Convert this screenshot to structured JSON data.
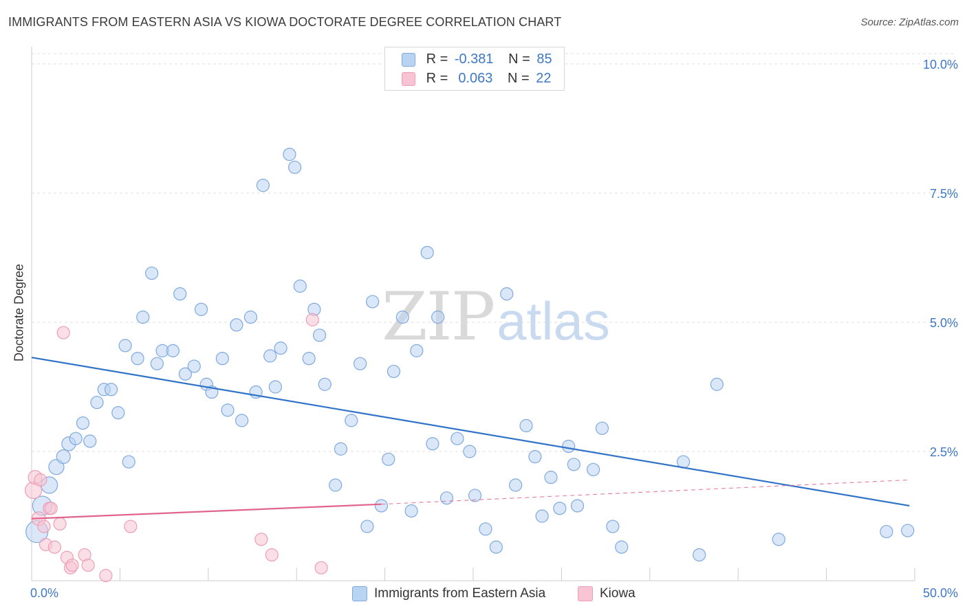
{
  "header": {
    "title": "IMMIGRANTS FROM EASTERN ASIA VS KIOWA DOCTORATE DEGREE CORRELATION CHART",
    "source": "Source: ZipAtlas.com"
  },
  "watermark": {
    "zip": "ZIP",
    "atlas": "atlas"
  },
  "legend": {
    "rows": [
      {
        "r_label": "R =",
        "r_value": "-0.381",
        "n_label": "N =",
        "n_value": "85"
      },
      {
        "r_label": "R =",
        "r_value": " 0.063",
        "n_label": "N =",
        "n_value": "22"
      }
    ]
  },
  "chart_data": {
    "type": "scatter",
    "title": "IMMIGRANTS FROM EASTERN ASIA VS KIOWA DOCTORATE DEGREE CORRELATION CHART",
    "xlabel": "",
    "ylabel": "Doctorate Degree",
    "xlim": [
      0,
      50
    ],
    "ylim": [
      0,
      10.2
    ],
    "x_tick_labels": [
      "0.0%",
      "50.0%"
    ],
    "y_ticks": [
      {
        "value": 2.5,
        "label": "2.5%"
      },
      {
        "value": 5.0,
        "label": "5.0%"
      },
      {
        "value": 7.5,
        "label": "7.5%"
      },
      {
        "value": 10.0,
        "label": "10.0%"
      }
    ],
    "grid": true,
    "legend_position": "top-center",
    "colors": {
      "blue_fill": "#b9d3f3",
      "blue_stroke": "#7fa9de",
      "blue_line": "#2f72c8",
      "pink_fill": "#f8c4d4",
      "pink_stroke": "#ee9db6",
      "pink_line": "#e0648e",
      "axis_text": "#3d77c6",
      "grid": "#dddddd"
    },
    "series": [
      {
        "name": "Immigrants from Eastern Asia",
        "color": "blue",
        "points": [
          [
            0.3,
            0.95,
            16
          ],
          [
            0.6,
            1.45,
            14
          ],
          [
            1.0,
            1.85,
            12
          ],
          [
            1.4,
            2.2,
            11
          ],
          [
            1.8,
            2.4,
            10
          ],
          [
            2.1,
            2.65,
            10
          ],
          [
            2.5,
            2.75,
            9
          ],
          [
            2.9,
            3.05,
            9
          ],
          [
            3.3,
            2.7,
            9
          ],
          [
            3.7,
            3.45,
            9
          ],
          [
            4.1,
            3.7,
            9
          ],
          [
            4.5,
            3.7,
            9
          ],
          [
            4.9,
            3.25,
            9
          ],
          [
            5.3,
            4.55,
            9
          ],
          [
            5.5,
            2.3,
            9
          ],
          [
            6.0,
            4.3,
            9
          ],
          [
            6.3,
            5.1,
            9
          ],
          [
            6.8,
            5.95,
            9
          ],
          [
            7.1,
            4.2,
            9
          ],
          [
            7.4,
            4.45,
            9
          ],
          [
            8.0,
            4.45,
            9
          ],
          [
            8.4,
            5.55,
            9
          ],
          [
            8.7,
            4.0,
            9
          ],
          [
            9.2,
            4.15,
            9
          ],
          [
            9.6,
            5.25,
            9
          ],
          [
            9.9,
            3.8,
            9
          ],
          [
            10.2,
            3.65,
            9
          ],
          [
            10.8,
            4.3,
            9
          ],
          [
            11.1,
            3.3,
            9
          ],
          [
            11.6,
            4.95,
            9
          ],
          [
            11.9,
            3.1,
            9
          ],
          [
            12.4,
            5.1,
            9
          ],
          [
            12.7,
            3.65,
            9
          ],
          [
            13.1,
            7.65,
            9
          ],
          [
            13.5,
            4.35,
            9
          ],
          [
            13.8,
            3.75,
            9
          ],
          [
            14.1,
            4.5,
            9
          ],
          [
            14.6,
            8.25,
            9
          ],
          [
            14.9,
            8.0,
            9
          ],
          [
            15.2,
            5.7,
            9
          ],
          [
            15.7,
            4.3,
            9
          ],
          [
            16.0,
            5.25,
            9
          ],
          [
            16.3,
            4.75,
            9
          ],
          [
            16.6,
            3.8,
            9
          ],
          [
            17.2,
            1.85,
            9
          ],
          [
            17.5,
            2.55,
            9
          ],
          [
            18.1,
            3.1,
            9
          ],
          [
            18.6,
            4.2,
            9
          ],
          [
            19.0,
            1.05,
            9
          ],
          [
            19.3,
            5.4,
            9
          ],
          [
            19.8,
            1.45,
            9
          ],
          [
            20.2,
            2.35,
            9
          ],
          [
            20.5,
            4.05,
            9
          ],
          [
            21.0,
            5.1,
            9
          ],
          [
            21.5,
            1.35,
            9
          ],
          [
            21.8,
            4.45,
            9
          ],
          [
            22.4,
            6.35,
            9
          ],
          [
            22.7,
            2.65,
            9
          ],
          [
            23.0,
            5.1,
            9
          ],
          [
            23.5,
            1.6,
            9
          ],
          [
            24.1,
            2.75,
            9
          ],
          [
            24.8,
            2.5,
            9
          ],
          [
            25.1,
            1.65,
            9
          ],
          [
            25.7,
            1.0,
            9
          ],
          [
            26.3,
            0.65,
            9
          ],
          [
            26.9,
            5.55,
            9
          ],
          [
            27.4,
            1.85,
            9
          ],
          [
            28.0,
            3.0,
            9
          ],
          [
            28.5,
            2.4,
            9
          ],
          [
            28.9,
            1.25,
            9
          ],
          [
            29.4,
            2.0,
            9
          ],
          [
            29.9,
            1.4,
            9
          ],
          [
            30.4,
            2.6,
            9
          ],
          [
            30.7,
            2.25,
            9
          ],
          [
            30.9,
            1.45,
            9
          ],
          [
            31.8,
            2.15,
            9
          ],
          [
            32.3,
            2.95,
            9
          ],
          [
            32.9,
            1.05,
            9
          ],
          [
            33.4,
            0.65,
            9
          ],
          [
            36.9,
            2.3,
            9
          ],
          [
            37.8,
            0.5,
            9
          ],
          [
            38.8,
            3.8,
            9
          ],
          [
            42.3,
            0.8,
            9
          ],
          [
            48.4,
            0.95,
            9
          ],
          [
            49.6,
            0.97,
            9
          ]
        ],
        "trend": {
          "x0": 0.0,
          "y0": 4.32,
          "x1": 49.7,
          "y1": 1.45
        }
      },
      {
        "name": "Kiowa",
        "color": "pink",
        "points": [
          [
            0.1,
            1.75,
            12
          ],
          [
            0.2,
            2.0,
            10
          ],
          [
            0.4,
            1.2,
            10
          ],
          [
            0.5,
            1.95,
            9
          ],
          [
            0.7,
            1.05,
            9
          ],
          [
            0.8,
            0.7,
            9
          ],
          [
            1.0,
            1.4,
            9
          ],
          [
            1.1,
            1.4,
            9
          ],
          [
            1.3,
            0.65,
            9
          ],
          [
            1.6,
            1.1,
            9
          ],
          [
            1.8,
            4.8,
            9
          ],
          [
            2.0,
            0.45,
            9
          ],
          [
            2.2,
            0.25,
            9
          ],
          [
            2.3,
            0.3,
            9
          ],
          [
            3.0,
            0.5,
            9
          ],
          [
            3.2,
            0.3,
            9
          ],
          [
            4.2,
            0.1,
            9
          ],
          [
            5.6,
            1.05,
            9
          ],
          [
            13.0,
            0.8,
            9
          ],
          [
            13.6,
            0.5,
            9
          ],
          [
            15.9,
            5.05,
            9
          ],
          [
            16.4,
            0.25,
            9
          ]
        ],
        "trend": {
          "x0": 0.0,
          "y0": 1.2,
          "x1": 19.8,
          "y1": 1.48
        },
        "trend_ext": {
          "x0": 19.8,
          "y0": 1.48,
          "x1": 49.7,
          "y1": 1.95
        }
      }
    ]
  }
}
